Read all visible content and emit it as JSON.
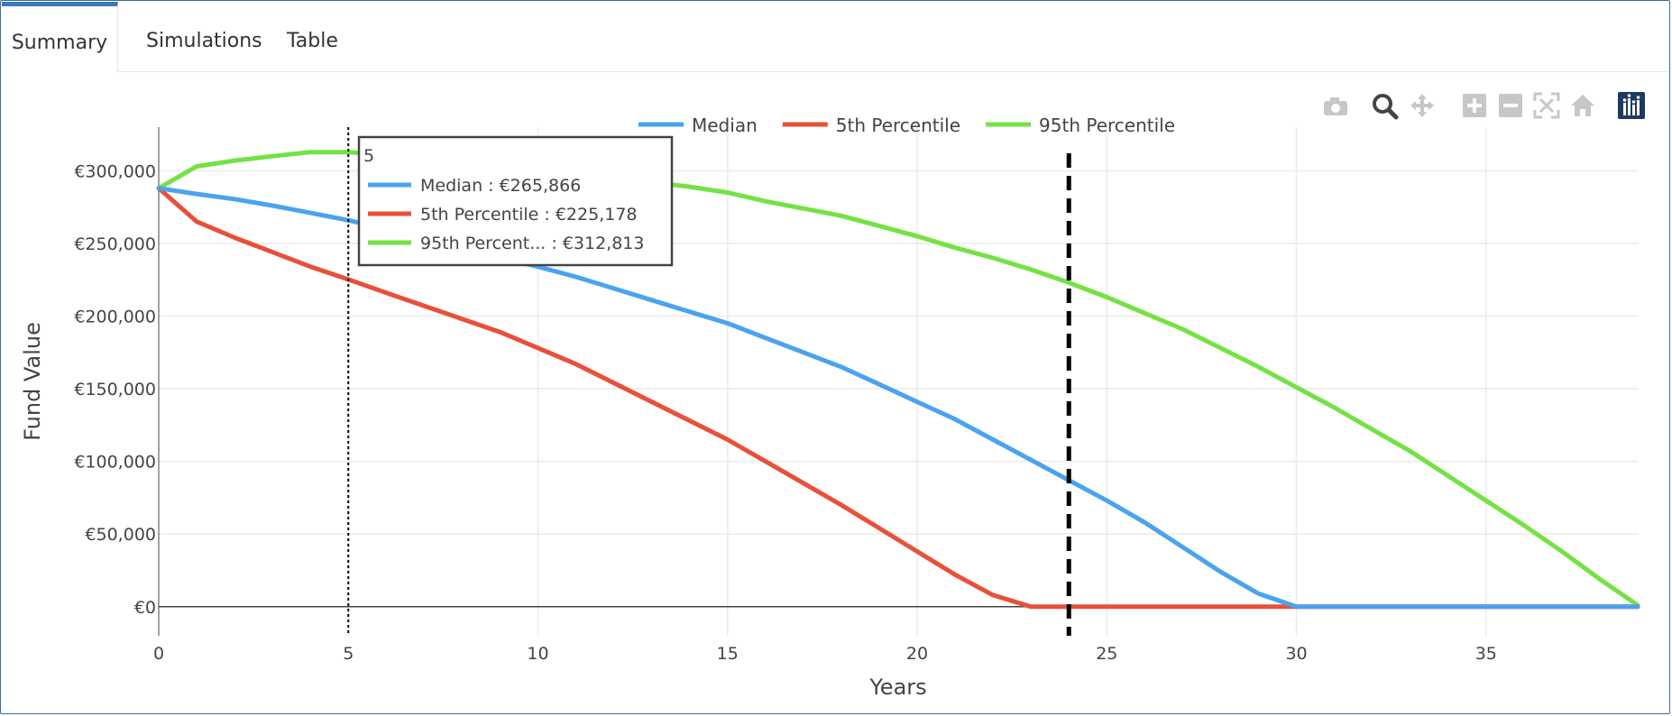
{
  "tabs": [
    {
      "label": "Summary",
      "active": true
    },
    {
      "label": "Simulations",
      "active": false
    },
    {
      "label": "Table",
      "active": false
    }
  ],
  "modebar": [
    "camera-icon",
    "zoom-icon",
    "pan-icon",
    "zoom-in-icon",
    "zoom-out-icon",
    "autoscale-icon",
    "reset-axes-icon",
    "plotly-logo-icon"
  ],
  "chart_data": {
    "type": "line",
    "xlabel": "Years",
    "ylabel": "Fund Value",
    "xlim": [
      0,
      39
    ],
    "ylim": [
      -20000,
      330000
    ],
    "xticks": [
      0,
      5,
      10,
      15,
      20,
      25,
      30,
      35
    ],
    "xtick_labels": [
      "0",
      "5",
      "10",
      "15",
      "20",
      "25",
      "30",
      "35"
    ],
    "yticks": [
      0,
      50000,
      100000,
      150000,
      200000,
      250000,
      300000
    ],
    "ytick_labels": [
      "€0",
      "€50,000",
      "€100,000",
      "€150,000",
      "€200,000",
      "€250,000",
      "€300,000"
    ],
    "grid": true,
    "legend_position": "top-center",
    "series": [
      {
        "name": "Median",
        "color": "#4aa3ee",
        "x": [
          0,
          1,
          2,
          3,
          4,
          5,
          6,
          7,
          8,
          9,
          10,
          11,
          12,
          13,
          14,
          15,
          16,
          17,
          18,
          19,
          20,
          21,
          22,
          23,
          24,
          25,
          26,
          27,
          28,
          29,
          30,
          31,
          32,
          33,
          34,
          35,
          36,
          37,
          38,
          39
        ],
        "y": [
          288000,
          284000,
          280500,
          276000,
          271000,
          265866,
          260000,
          254000,
          247000,
          240000,
          234000,
          227000,
          219000,
          211000,
          203000,
          195000,
          185000,
          175000,
          165000,
          153000,
          141000,
          129000,
          115000,
          101000,
          87000,
          73000,
          58000,
          41000,
          24000,
          9000,
          0,
          0,
          0,
          0,
          0,
          0,
          0,
          0,
          0,
          0
        ]
      },
      {
        "name": "5th Percentile",
        "color": "#e9503a",
        "x": [
          0,
          1,
          2,
          3,
          4,
          5,
          6,
          7,
          8,
          9,
          10,
          11,
          12,
          13,
          14,
          15,
          16,
          17,
          18,
          19,
          20,
          21,
          22,
          23,
          24,
          25,
          26,
          27,
          28,
          29,
          30,
          31,
          32,
          33,
          34,
          35,
          36,
          37,
          38,
          39
        ],
        "y": [
          288000,
          265000,
          254000,
          244000,
          234000,
          225178,
          216000,
          207000,
          198000,
          189000,
          178000,
          167000,
          154000,
          141000,
          128000,
          115000,
          100000,
          85000,
          70000,
          54000,
          38000,
          22000,
          8000,
          0,
          0,
          0,
          0,
          0,
          0,
          0,
          0,
          0,
          0,
          0,
          0,
          0,
          0,
          0,
          0,
          0
        ]
      },
      {
        "name": "95th Percentile",
        "color": "#74e243",
        "x": [
          0,
          1,
          2,
          3,
          4,
          5,
          6,
          7,
          8,
          9,
          10,
          11,
          12,
          13,
          14,
          15,
          16,
          17,
          18,
          19,
          20,
          21,
          22,
          23,
          24,
          25,
          26,
          27,
          28,
          29,
          30,
          31,
          32,
          33,
          34,
          35,
          36,
          37,
          38,
          39
        ],
        "y": [
          288000,
          303000,
          307000,
          310000,
          312813,
          312813,
          311000,
          309000,
          306000,
          302000,
          299000,
          297000,
          295000,
          292000,
          289000,
          285000,
          279000,
          274000,
          269000,
          262000,
          255000,
          247000,
          240000,
          232000,
          223000,
          213000,
          202000,
          191000,
          178000,
          165000,
          151000,
          137000,
          122000,
          107000,
          90000,
          73000,
          56000,
          38000,
          19000,
          1000
        ]
      }
    ],
    "vlines": [
      {
        "x": 5,
        "style": "dotted"
      },
      {
        "x": 24,
        "style": "dashed"
      }
    ],
    "hover": {
      "x_label": "5",
      "entries": [
        {
          "name": "Median",
          "value": "€265,866",
          "color": "#4aa3ee"
        },
        {
          "name": "5th Percentile",
          "value": "€225,178",
          "color": "#e9503a"
        },
        {
          "name": "95th Percent...",
          "value": "€312,813",
          "color": "#74e243"
        }
      ]
    }
  }
}
